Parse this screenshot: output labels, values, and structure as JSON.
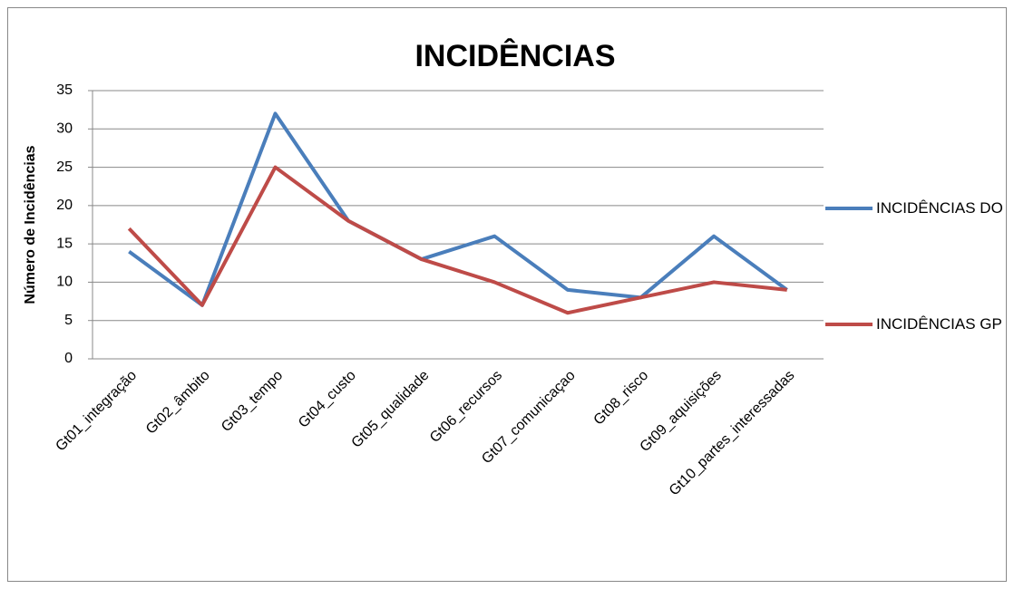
{
  "chart_data": {
    "type": "line",
    "title": "INCIDÊNCIAS",
    "y_label": "Número de Incidências",
    "categories": [
      "Gt01_integração",
      "Gt02_âmbito",
      "Gt03_tempo",
      "Gt04_custo",
      "Gt05_qualidade",
      "Gt06_recursos",
      "Gt07_comunicaçao",
      "Gt08_risco",
      "Gt09_aquisições",
      "Gt10_partes_interessadas"
    ],
    "series": [
      {
        "name": "INCIDÊNCIAS DO",
        "color": "#4a7ebb",
        "values": [
          14,
          7,
          32,
          18,
          13,
          16,
          9,
          8,
          16,
          9
        ]
      },
      {
        "name": "INCIDÊNCIAS GP",
        "color": "#be4b48",
        "values": [
          17,
          7,
          25,
          18,
          13,
          10,
          6,
          8,
          10,
          9
        ]
      }
    ],
    "ylim": [
      0,
      35
    ],
    "yticks": [
      0,
      5,
      10,
      15,
      20,
      25,
      30,
      35
    ],
    "grid": true,
    "legend": "right"
  }
}
